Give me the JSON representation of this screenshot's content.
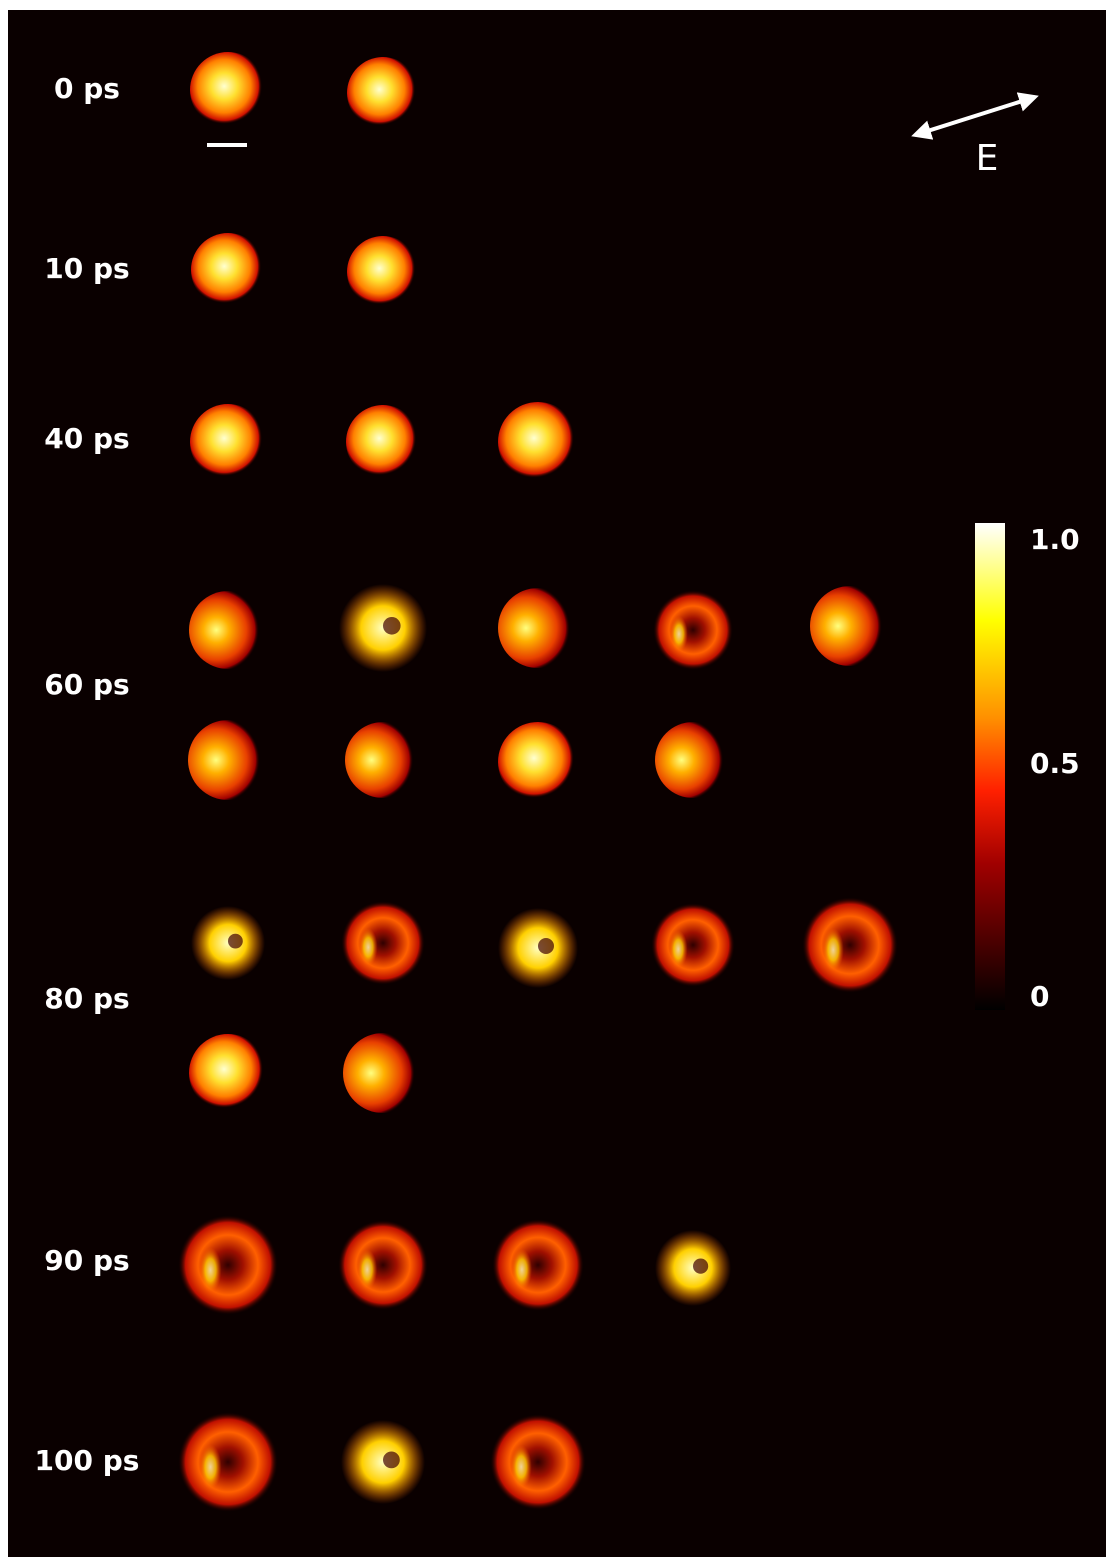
{
  "rows": [
    {
      "label": "0 ps"
    },
    {
      "label": "10 ps"
    },
    {
      "label": "40 ps"
    },
    {
      "label": "60 ps"
    },
    {
      "label": "80 ps"
    },
    {
      "label": "90 ps"
    },
    {
      "label": "100 ps"
    }
  ],
  "colorbar": {
    "labels": [
      "1.0",
      "0.5",
      "0"
    ]
  },
  "polarization": {
    "label": "E"
  }
}
